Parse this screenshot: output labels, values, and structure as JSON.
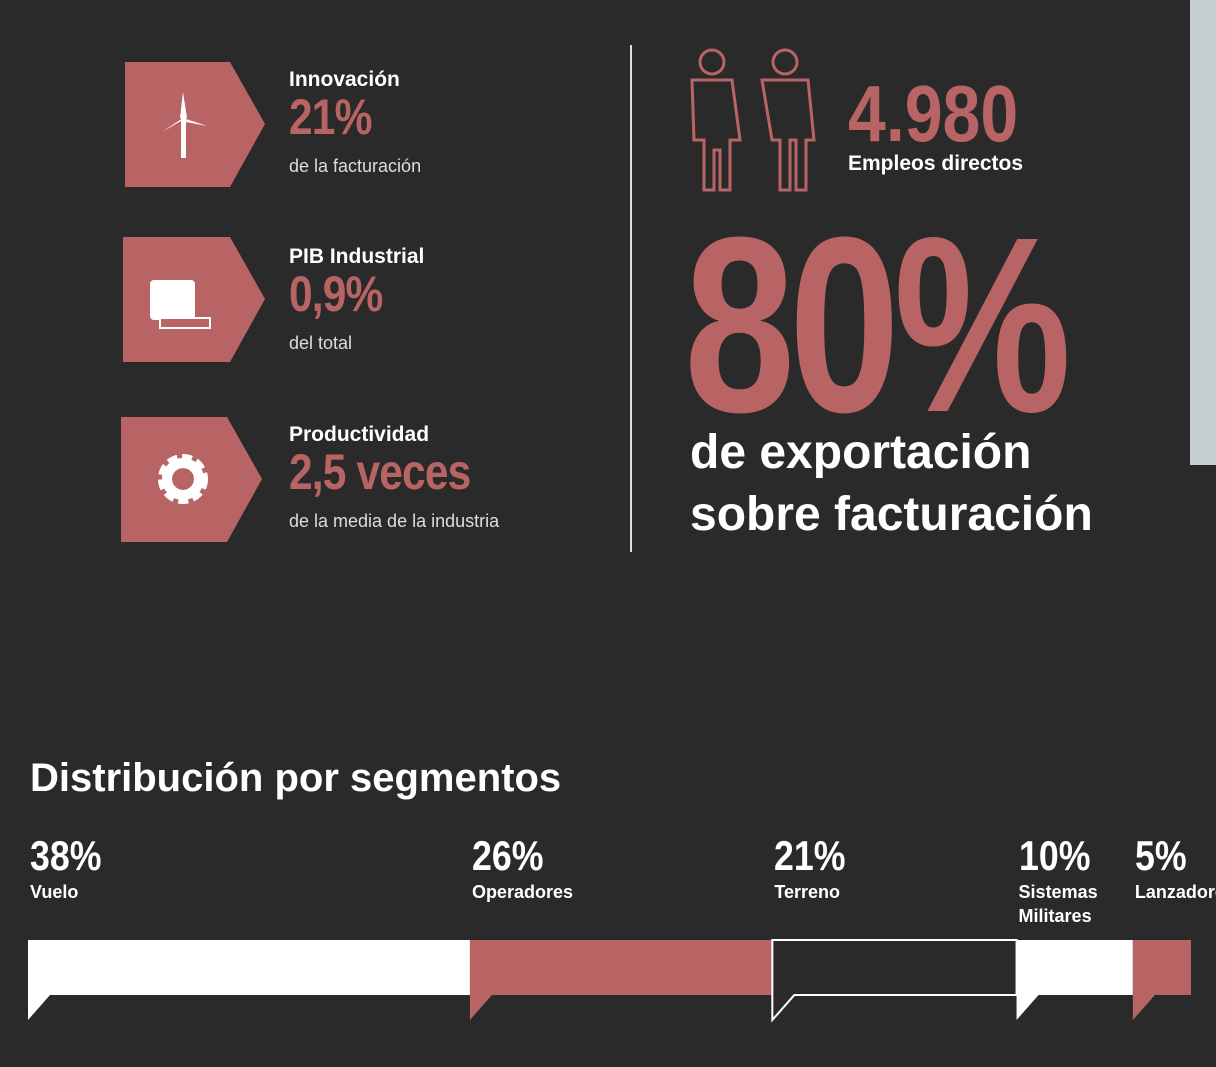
{
  "stats": [
    {
      "label": "Innovación",
      "value": "21%",
      "note": "de la facturación"
    },
    {
      "label": "PIB Industrial",
      "value": "0,9%",
      "note": "del total"
    },
    {
      "label": "Productividad",
      "value": "2,5 veces",
      "note": "de la media de la industria"
    }
  ],
  "employees": {
    "value": "4.980",
    "label": "Empleos directos"
  },
  "export": {
    "value": "80%",
    "lines": [
      "de exportación",
      "sobre facturación"
    ]
  },
  "chart_data": {
    "type": "stacked_bar",
    "title": "Distribución por segmentos",
    "categories": [
      "Vuelo",
      "Operadores",
      "Terreno",
      "Sistemas Militares",
      "Lanzadores"
    ],
    "values": [
      38,
      26,
      21,
      10,
      5
    ],
    "value_labels": [
      "38%",
      "26%",
      "21%",
      "10%",
      "5%"
    ],
    "colors": [
      "#ffffff",
      "#b86464",
      "#2b2a2a",
      "#ffffff",
      "#b86464"
    ]
  }
}
